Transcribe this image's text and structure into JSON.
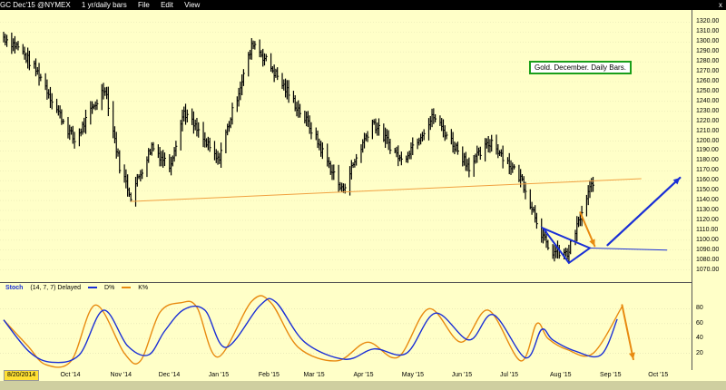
{
  "titlebar": {
    "symbol": "GC Dec'15 @NYMEX",
    "timeframe": "1 yr/daily bars",
    "menu_file": "File",
    "menu_edit": "Edit",
    "menu_view": "View",
    "close": "x"
  },
  "stoch_header": {
    "name": "Stoch",
    "params": "(14, 7, 7) Delayed",
    "legend_d": "D%",
    "legend_k": "K%"
  },
  "annotation": "Gold. December. Daily Bars.",
  "date_start": "8/20/2014",
  "colors": {
    "background": "#ffffc8",
    "bars": "#000000",
    "d_line": "#1a2fd6",
    "k_line": "#e88a10",
    "trendline": "#f0a040",
    "triangle": "#1a2fd6",
    "annotation_border": "#1a9f1a"
  },
  "chart_data": [
    {
      "type": "bar",
      "title": "GC Dec'15 @NYMEX",
      "ylim": [
        1065,
        1325
      ],
      "yticks": [
        "1320.00",
        "1310.00",
        "1300.00",
        "1290.00",
        "1280.00",
        "1270.00",
        "1260.00",
        "1250.00",
        "1240.00",
        "1230.00",
        "1220.00",
        "1210.00",
        "1200.00",
        "1190.00",
        "1180.00",
        "1170.00",
        "1160.00",
        "1150.00",
        "1140.00",
        "1130.00",
        "1120.00",
        "1110.00",
        "1100.00",
        "1090.00",
        "1080.00",
        "1070.00"
      ],
      "xticks": [
        "Oct '14",
        "Nov '14",
        "Dec '14",
        "Jan '15",
        "Feb '15",
        "Mar '15",
        "Apr '15",
        "May '15",
        "Jun '15",
        "Jul '15",
        "Aug '15",
        "Sep '15",
        "Oct '15"
      ],
      "anchors": [
        [
          "2014-08-20",
          1305
        ],
        [
          "2014-08-29",
          1295
        ],
        [
          "2014-09-12",
          1265
        ],
        [
          "2014-09-22",
          1232
        ],
        [
          "2014-10-03",
          1200
        ],
        [
          "2014-10-22",
          1255
        ],
        [
          "2014-10-31",
          1175
        ],
        [
          "2014-11-07",
          1145
        ],
        [
          "2014-11-20",
          1195
        ],
        [
          "2014-12-01",
          1175
        ],
        [
          "2014-12-10",
          1230
        ],
        [
          "2014-12-31",
          1180
        ],
        [
          "2015-01-22",
          1300
        ],
        [
          "2015-02-06",
          1265
        ],
        [
          "2015-02-26",
          1215
        ],
        [
          "2015-03-18",
          1150
        ],
        [
          "2015-04-06",
          1220
        ],
        [
          "2015-04-24",
          1180
        ],
        [
          "2015-05-14",
          1225
        ],
        [
          "2015-06-05",
          1175
        ],
        [
          "2015-06-19",
          1200
        ],
        [
          "2015-07-08",
          1160
        ],
        [
          "2015-07-24",
          1090
        ],
        [
          "2015-08-05",
          1085
        ],
        [
          "2015-08-21",
          1160
        ]
      ],
      "trendline": [
        [
          "2014-11-07",
          1139
        ],
        [
          "2015-09-20",
          1162
        ]
      ],
      "triangle": [
        [
          "2015-07-21",
          1112
        ],
        [
          "2015-08-06",
          1077
        ],
        [
          "2015-08-19",
          1092
        ]
      ],
      "support_line": [
        [
          "2015-08-19",
          1092
        ],
        [
          "2015-10-06",
          1090
        ]
      ],
      "down_arrow": [
        [
          "2015-08-13",
          1128
        ],
        [
          "2015-08-22",
          1094
        ]
      ],
      "up_arrow": [
        [
          "2015-08-30",
          1095
        ],
        [
          "2015-10-14",
          1163
        ]
      ]
    },
    {
      "type": "line",
      "title": "Stoch (14, 7, 7) Delayed",
      "ylim": [
        0,
        100
      ],
      "yticks": [
        "80",
        "60",
        "40",
        "20"
      ],
      "series": [
        {
          "name": "D%",
          "points": [
            [
              "2014-08-20",
              65
            ],
            [
              "2014-09-05",
              22
            ],
            [
              "2014-09-19",
              8
            ],
            [
              "2014-10-06",
              18
            ],
            [
              "2014-10-21",
              78
            ],
            [
              "2014-11-05",
              30
            ],
            [
              "2014-11-18",
              18
            ],
            [
              "2014-11-28",
              50
            ],
            [
              "2014-12-10",
              79
            ],
            [
              "2014-12-23",
              78
            ],
            [
              "2015-01-05",
              28
            ],
            [
              "2015-01-26",
              84
            ],
            [
              "2015-02-05",
              89
            ],
            [
              "2015-02-23",
              35
            ],
            [
              "2015-03-20",
              12
            ],
            [
              "2015-04-07",
              26
            ],
            [
              "2015-04-27",
              20
            ],
            [
              "2015-05-15",
              74
            ],
            [
              "2015-06-05",
              38
            ],
            [
              "2015-06-20",
              72
            ],
            [
              "2015-07-10",
              14
            ],
            [
              "2015-07-20",
              52
            ],
            [
              "2015-07-27",
              38
            ],
            [
              "2015-08-10",
              23
            ],
            [
              "2015-08-26",
              18
            ],
            [
              "2015-09-05",
              66
            ]
          ]
        },
        {
          "name": "K%",
          "points": [
            [
              "2014-08-20",
              65
            ],
            [
              "2014-09-04",
              30
            ],
            [
              "2014-09-15",
              5
            ],
            [
              "2014-10-01",
              10
            ],
            [
              "2014-10-16",
              85
            ],
            [
              "2014-11-03",
              20
            ],
            [
              "2014-11-13",
              10
            ],
            [
              "2014-11-25",
              75
            ],
            [
              "2014-12-08",
              88
            ],
            [
              "2014-12-18",
              82
            ],
            [
              "2014-12-31",
              15
            ],
            [
              "2015-01-21",
              90
            ],
            [
              "2015-02-02",
              88
            ],
            [
              "2015-02-19",
              28
            ],
            [
              "2015-03-15",
              10
            ],
            [
              "2015-04-03",
              35
            ],
            [
              "2015-04-22",
              15
            ],
            [
              "2015-05-11",
              80
            ],
            [
              "2015-05-31",
              35
            ],
            [
              "2015-06-17",
              78
            ],
            [
              "2015-07-07",
              10
            ],
            [
              "2015-07-17",
              60
            ],
            [
              "2015-07-24",
              40
            ],
            [
              "2015-08-05",
              25
            ],
            [
              "2015-08-21",
              20
            ],
            [
              "2015-09-08",
              83
            ]
          ]
        }
      ],
      "down_arrow": [
        [
          "2015-09-08",
          85
        ],
        [
          "2015-09-15",
          12
        ]
      ]
    }
  ]
}
